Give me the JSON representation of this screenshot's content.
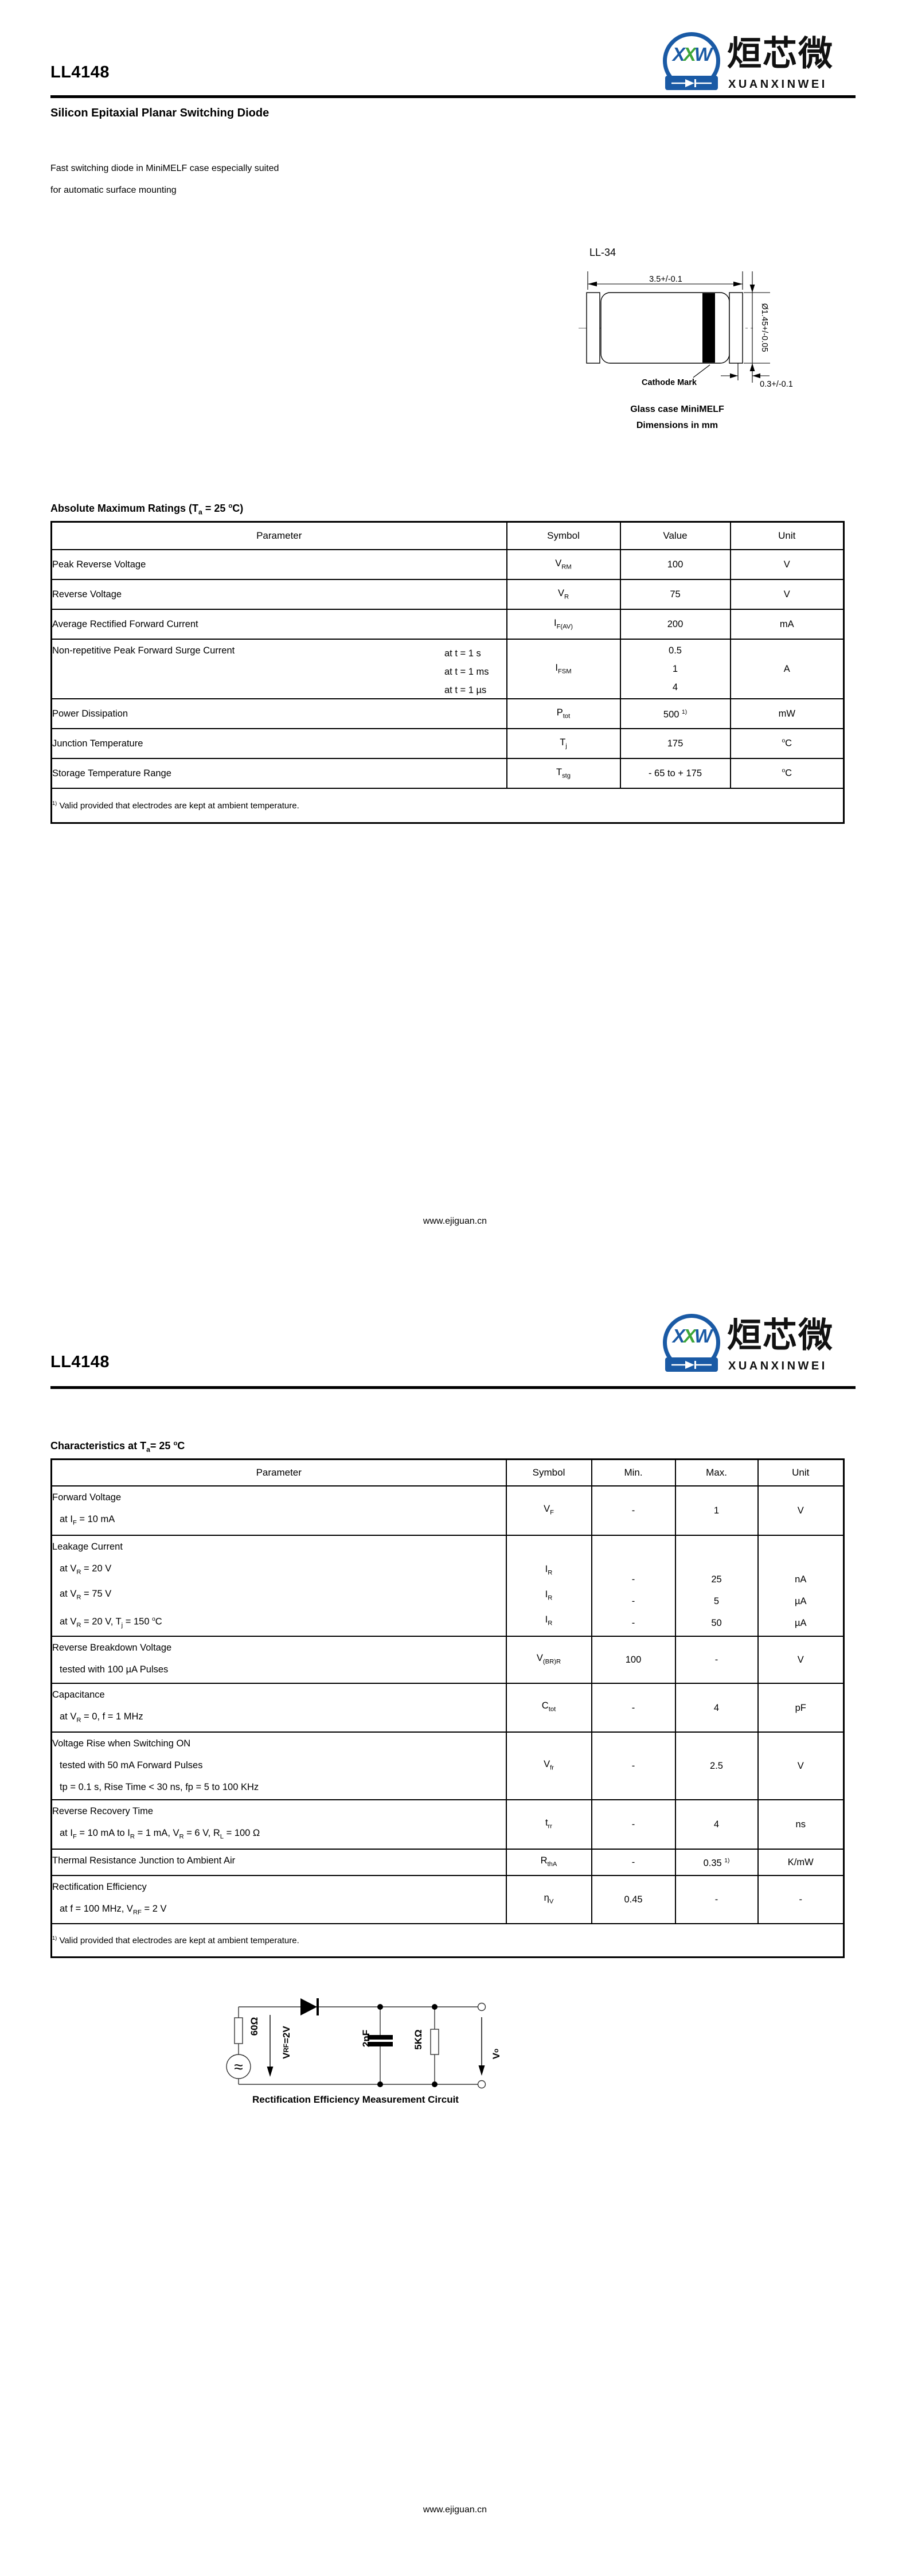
{
  "logo": {
    "letters": [
      "X",
      "X",
      "W"
    ],
    "cn": "烜芯微",
    "en": "XUANXINWEI",
    "blue": "#1a5aa5",
    "green": "#3da639"
  },
  "footer_url": "www.ejiguan.cn",
  "page1": {
    "part_number": "LL4148",
    "subtitle": "Silicon Epitaxial Planar Switching Diode",
    "description": [
      "Fast switching diode in MiniMELF case especially suited",
      "for automatic surface mounting"
    ],
    "package": {
      "name": "LL-34",
      "dim_length": "3.5+/-0.1",
      "dim_diameter": "Ø1.45+/-0.05",
      "dim_end": "0.3+/-0.1",
      "cathode_label": "Cathode Mark",
      "caption": [
        "Glass case MiniMELF",
        "Dimensions in mm"
      ]
    },
    "abs_max_ratings": {
      "title": "Absolute Maximum Ratings (T_{a} = 25 ^{o}C)",
      "headers": [
        "Parameter",
        "Symbol",
        "Value",
        "Unit"
      ],
      "rows": [
        {
          "parameter": "Peak Reverse Voltage",
          "symbol": "V_{RM}",
          "values": [
            "100"
          ],
          "unit": "V"
        },
        {
          "parameter": "Reverse Voltage",
          "symbol": "V_{R}",
          "values": [
            "75"
          ],
          "unit": "V"
        },
        {
          "parameter": "Average Rectified Forward Current",
          "symbol": "I_{F(AV)}",
          "values": [
            "200"
          ],
          "unit": "mA"
        },
        {
          "parameter": "Non-repetitive Peak Forward Surge Current",
          "conditions": [
            "at t = 1 s",
            "at t = 1 ms",
            "at t = 1 µs"
          ],
          "symbol": "I_{FSM}",
          "values": [
            "0.5",
            "1",
            "4"
          ],
          "unit": "A"
        },
        {
          "parameter": "Power Dissipation",
          "symbol": "P_{tot}",
          "values": [
            "500 ^{1)}"
          ],
          "unit": "mW"
        },
        {
          "parameter": "Junction Temperature",
          "symbol": "T_{j}",
          "values": [
            "175"
          ],
          "unit": "^{o}C"
        },
        {
          "parameter": "Storage Temperature Range",
          "symbol": "T_{stg}",
          "values": [
            "- 65 to + 175"
          ],
          "unit": "^{o}C"
        }
      ],
      "footnote": "^{1)} Valid provided that electrodes are kept at ambient temperature."
    }
  },
  "page2": {
    "part_number": "LL4148",
    "characteristics": {
      "title": "Characteristics at T_{a}= 25 ^{o}C",
      "headers": [
        "Parameter",
        "Symbol",
        "Min.",
        "Max.",
        "Unit"
      ],
      "rows": [
        {
          "parameter": "Forward Voltage",
          "conditions": [
            "at I_{F} = 10 mA"
          ],
          "symbols": [
            "V_{F}"
          ],
          "min": [
            "-"
          ],
          "max": [
            "1"
          ],
          "unit": [
            "V"
          ]
        },
        {
          "parameter": "Leakage Current",
          "conditions": [
            "at V_{R} = 20 V",
            "at V_{R} = 75 V",
            "at V_{R} = 20 V, T_{j} = 150 ^{o}C"
          ],
          "symbols": [
            "I_{R}",
            "I_{R}",
            "I_{R}"
          ],
          "min": [
            "-",
            "-",
            "-"
          ],
          "max": [
            "25",
            "5",
            "50"
          ],
          "unit": [
            "nA",
            "µA",
            "µA"
          ]
        },
        {
          "parameter": "Reverse Breakdown Voltage",
          "conditions": [
            "tested with 100 µA Pulses"
          ],
          "symbols": [
            "V_{(BR)R}"
          ],
          "min": [
            "100"
          ],
          "max": [
            "-"
          ],
          "unit": [
            "V"
          ]
        },
        {
          "parameter": "Capacitance",
          "conditions": [
            "at V_{R} = 0, f = 1 MHz"
          ],
          "symbols": [
            "C_{tot}"
          ],
          "min": [
            "-"
          ],
          "max": [
            "4"
          ],
          "unit": [
            "pF"
          ]
        },
        {
          "parameter": "Voltage Rise when Switching ON",
          "conditions": [
            "tested with 50 mA Forward Pulses",
            "tp = 0.1 s, Rise Time < 30 ns, fp = 5 to 100 KHz"
          ],
          "symbols": [
            "V_{fr}"
          ],
          "min": [
            "-"
          ],
          "max": [
            "2.5"
          ],
          "unit": [
            "V"
          ]
        },
        {
          "parameter": "Reverse Recovery Time",
          "conditions": [
            "at I_{F} = 10 mA to I_{R} = 1 mA, V_{R} = 6 V, R_{L} = 100 Ω"
          ],
          "symbols": [
            "t_{rr}"
          ],
          "min": [
            "-"
          ],
          "max": [
            "4"
          ],
          "unit": [
            "ns"
          ]
        },
        {
          "parameter": "Thermal Resistance Junction to Ambient Air",
          "conditions": [],
          "symbols": [
            "R_{thA}"
          ],
          "min": [
            "-"
          ],
          "max": [
            "0.35 ^{1)}"
          ],
          "unit": [
            "K/mW"
          ]
        },
        {
          "parameter": "Rectification Efficiency",
          "conditions": [
            "at f = 100 MHz, V_{RF} = 2 V"
          ],
          "symbols": [
            "η_{V}"
          ],
          "min": [
            "0.45"
          ],
          "max": [
            "-"
          ],
          "unit": [
            "-"
          ]
        }
      ],
      "footnote": "^{1)} Valid provided that electrodes are kept at ambient temperature."
    },
    "circuit": {
      "labels": {
        "source_resistor": "60Ω",
        "source_voltage": "V_{RF} =2V",
        "capacitor": "2nF",
        "load_resistor": "5KΩ",
        "output": "V_{o}"
      },
      "caption": "Rectification Efficiency Measurement Circuit"
    }
  }
}
